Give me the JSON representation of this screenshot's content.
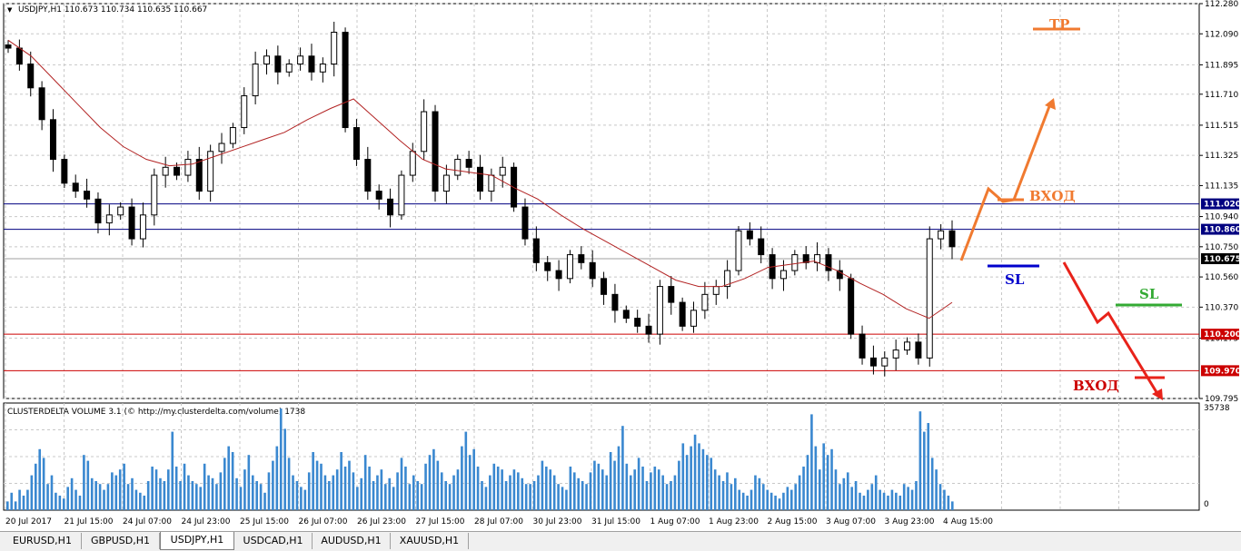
{
  "chart_data": [
    {
      "type": "candlestick",
      "symbol_header": "USDJPY,H1  110.673 110.734 110.635 110.667",
      "ylim": [
        109.795,
        112.28
      ],
      "price_ticks": [
        "112.280",
        "112.090",
        "111.895",
        "111.710",
        "111.515",
        "111.325",
        "111.135",
        "110.940",
        "110.750",
        "110.560",
        "110.370",
        "110.175",
        "109.795"
      ],
      "price_labels": [
        {
          "value": 111.02,
          "text": "111.020",
          "color": "#000080"
        },
        {
          "value": 110.86,
          "text": "110.860",
          "color": "#000080"
        },
        {
          "value": 110.675,
          "text": "110.675",
          "color": "#000000"
        },
        {
          "value": 110.2,
          "text": "110.200",
          "color": "#cc0000"
        },
        {
          "value": 109.97,
          "text": "109.970",
          "color": "#cc0000"
        }
      ],
      "horizontal_lines": [
        {
          "value": 111.02,
          "color": "#000080"
        },
        {
          "value": 110.86,
          "color": "#000080"
        },
        {
          "value": 110.675,
          "color": "#a0a0a0"
        },
        {
          "value": 110.2,
          "color": "#cc0000"
        },
        {
          "value": 109.97,
          "color": "#cc0000"
        }
      ],
      "close_series": [
        112.0,
        111.9,
        111.75,
        111.55,
        111.3,
        111.15,
        111.1,
        111.05,
        110.9,
        110.95,
        111.0,
        110.8,
        110.95,
        111.2,
        111.25,
        111.2,
        111.3,
        111.1,
        111.35,
        111.4,
        111.5,
        111.7,
        111.9,
        111.95,
        111.85,
        111.9,
        111.95,
        111.85,
        111.9,
        112.1,
        111.5,
        111.3,
        111.1,
        111.05,
        110.95,
        111.2,
        111.35,
        111.6,
        111.1,
        111.2,
        111.3,
        111.25,
        111.1,
        111.2,
        111.25,
        111.0,
        110.8,
        110.65,
        110.6,
        110.55,
        110.7,
        110.65,
        110.55,
        110.45,
        110.35,
        110.3,
        110.25,
        110.2,
        110.5,
        110.4,
        110.25,
        110.35,
        110.45,
        110.5,
        110.6,
        110.85,
        110.8,
        110.7,
        110.55,
        110.6,
        110.7,
        110.65,
        110.7,
        110.6,
        110.55,
        110.2,
        110.05,
        110.0,
        110.05,
        110.1,
        110.15,
        110.05,
        110.8,
        110.85,
        110.75
      ],
      "ma_series": [
        112.05,
        111.95,
        111.8,
        111.65,
        111.5,
        111.38,
        111.3,
        111.26,
        111.27,
        111.32,
        111.37,
        111.42,
        111.47,
        111.55,
        111.62,
        111.68,
        111.55,
        111.42,
        111.3,
        111.24,
        111.22,
        111.2,
        111.12,
        111.05,
        110.95,
        110.86,
        110.78,
        110.7,
        110.62,
        110.54,
        110.5,
        110.5,
        110.55,
        110.62,
        110.64,
        110.66,
        110.6,
        110.52,
        110.45,
        110.36,
        110.3,
        110.4
      ],
      "time_labels": [
        "20 Jul 2017",
        "21 Jul 15:00",
        "24 Jul 07:00",
        "24 Jul 23:00",
        "25 Jul 15:00",
        "26 Jul 07:00",
        "26 Jul 23:00",
        "27 Jul 15:00",
        "28 Jul 07:00",
        "30 Jul 23:00",
        "31 Jul 15:00",
        "1 Aug 07:00",
        "1 Aug 23:00",
        "2 Aug 15:00",
        "3 Aug 07:00",
        "3 Aug 23:00",
        "4 Aug 15:00"
      ],
      "annotations": [
        {
          "text": "TP",
          "color": "#f07a30"
        },
        {
          "text": "ВХОД",
          "color": "#f07a30"
        },
        {
          "text": "SL",
          "color": "#0000cc"
        },
        {
          "text": "SL",
          "color": "#33aa33"
        },
        {
          "text": "ВХОД",
          "color": "#cc0000"
        }
      ]
    },
    {
      "type": "bar",
      "indicator_title": "CLUSTERDELTA VOLUME 3.1 (© http://my.clusterdelta.com/volume) 1738",
      "ylim": [
        0,
        35738
      ],
      "y_ticks": [
        "35738",
        "0"
      ],
      "values": [
        3,
        6,
        3,
        7,
        5,
        7,
        12,
        16,
        21,
        18,
        9,
        12,
        6,
        5,
        4,
        8,
        11,
        7,
        5,
        19,
        17,
        11,
        10,
        9,
        7,
        9,
        13,
        12,
        14,
        16,
        9,
        11,
        7,
        6,
        5,
        10,
        15,
        14,
        11,
        10,
        14,
        27,
        15,
        10,
        16,
        12,
        10,
        9,
        8,
        16,
        12,
        11,
        9,
        13,
        18,
        22,
        20,
        11,
        8,
        14,
        19,
        12,
        10,
        9,
        6,
        13,
        17,
        22,
        35,
        28,
        18,
        12,
        10,
        8,
        7,
        13,
        20,
        17,
        16,
        12,
        10,
        12,
        14,
        20,
        15,
        17,
        13,
        8,
        11,
        19,
        15,
        10,
        12,
        14,
        9,
        11,
        8,
        13,
        18,
        15,
        9,
        12,
        10,
        9,
        16,
        19,
        21,
        17,
        13,
        10,
        9,
        12,
        14,
        22,
        27,
        19,
        21,
        15,
        10,
        8,
        12,
        16,
        15,
        14,
        10,
        12,
        14,
        13,
        11,
        9,
        9,
        10,
        12,
        17,
        15,
        14,
        12,
        9,
        8,
        7,
        15,
        13,
        11,
        10,
        9,
        13,
        17,
        16,
        14,
        12,
        20,
        17,
        22,
        29,
        16,
        12,
        14,
        18,
        15,
        10,
        13,
        15,
        14,
        12,
        9,
        10,
        12,
        17,
        23,
        19,
        22,
        26,
        23,
        21,
        19,
        18,
        14,
        12,
        10,
        13,
        9,
        11,
        7,
        6,
        5,
        7,
        12,
        11,
        9,
        7,
        6,
        5,
        4,
        6,
        8,
        7,
        9,
        12,
        15,
        19,
        33,
        22,
        14,
        23,
        19,
        21,
        14,
        9,
        11,
        13,
        8,
        10,
        6,
        5,
        7,
        9,
        12,
        7,
        6,
        5,
        7,
        6,
        5,
        9,
        8,
        7,
        10,
        34,
        27,
        30,
        18,
        14,
        9,
        7,
        5,
        3
      ]
    }
  ],
  "tabs": [
    {
      "label": "EURUSD,H1",
      "active": false
    },
    {
      "label": "GBPUSD,H1",
      "active": false
    },
    {
      "label": "USDJPY,H1",
      "active": true
    },
    {
      "label": "USDCAD,H1",
      "active": false
    },
    {
      "label": "AUDUSD,H1",
      "active": false
    },
    {
      "label": "XAUUSD,H1",
      "active": false
    }
  ],
  "colors": {
    "candle": "#000000",
    "ma": "#b22222",
    "volume": "#3a88d0",
    "grid": "#c8c8c8"
  }
}
